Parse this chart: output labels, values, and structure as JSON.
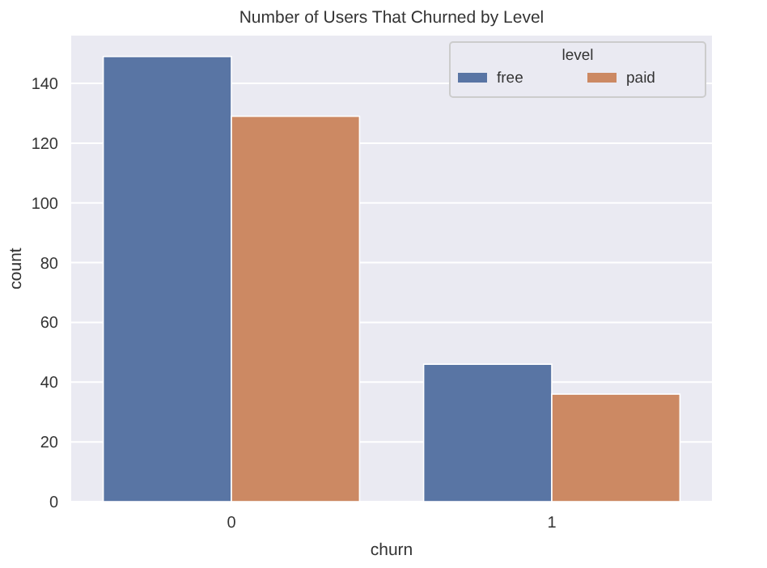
{
  "chart_data": {
    "type": "bar",
    "title": "Number of Users That Churned by Level",
    "xlabel": "churn",
    "ylabel": "count",
    "legend_title": "level",
    "categories": [
      "0",
      "1"
    ],
    "series": [
      {
        "name": "free",
        "color": "#5975a4",
        "values": [
          149,
          46
        ]
      },
      {
        "name": "paid",
        "color": "#cc8963",
        "values": [
          129,
          36
        ]
      }
    ],
    "ylim": [
      0,
      156
    ],
    "yticks": [
      0,
      20,
      40,
      60,
      80,
      100,
      120,
      140
    ],
    "grid": "y",
    "legend": "top right"
  }
}
